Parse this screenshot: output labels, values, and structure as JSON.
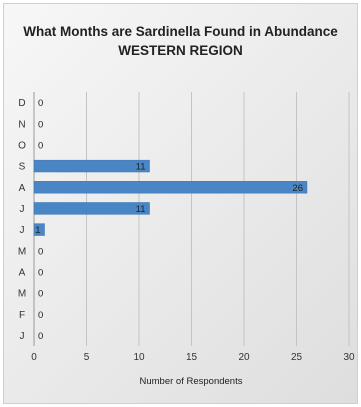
{
  "chart_data": {
    "type": "bar",
    "orientation": "horizontal",
    "title": "What Months are Sardinella Found in Abundance",
    "subtitle": "WESTERN REGION",
    "xlabel": "Number of Respondents",
    "ylabel": "",
    "xlim": [
      0,
      30
    ],
    "xticks": [
      0,
      5,
      10,
      15,
      20,
      25,
      30
    ],
    "categories": [
      "D",
      "N",
      "O",
      "S",
      "A",
      "J",
      "J",
      "M",
      "A",
      "M",
      "F",
      "J"
    ],
    "values": [
      0,
      0,
      0,
      11,
      26,
      11,
      1,
      0,
      0,
      0,
      0,
      0
    ],
    "grid": "vertical",
    "bar_color": "#4a86c5",
    "data_labels": true
  }
}
